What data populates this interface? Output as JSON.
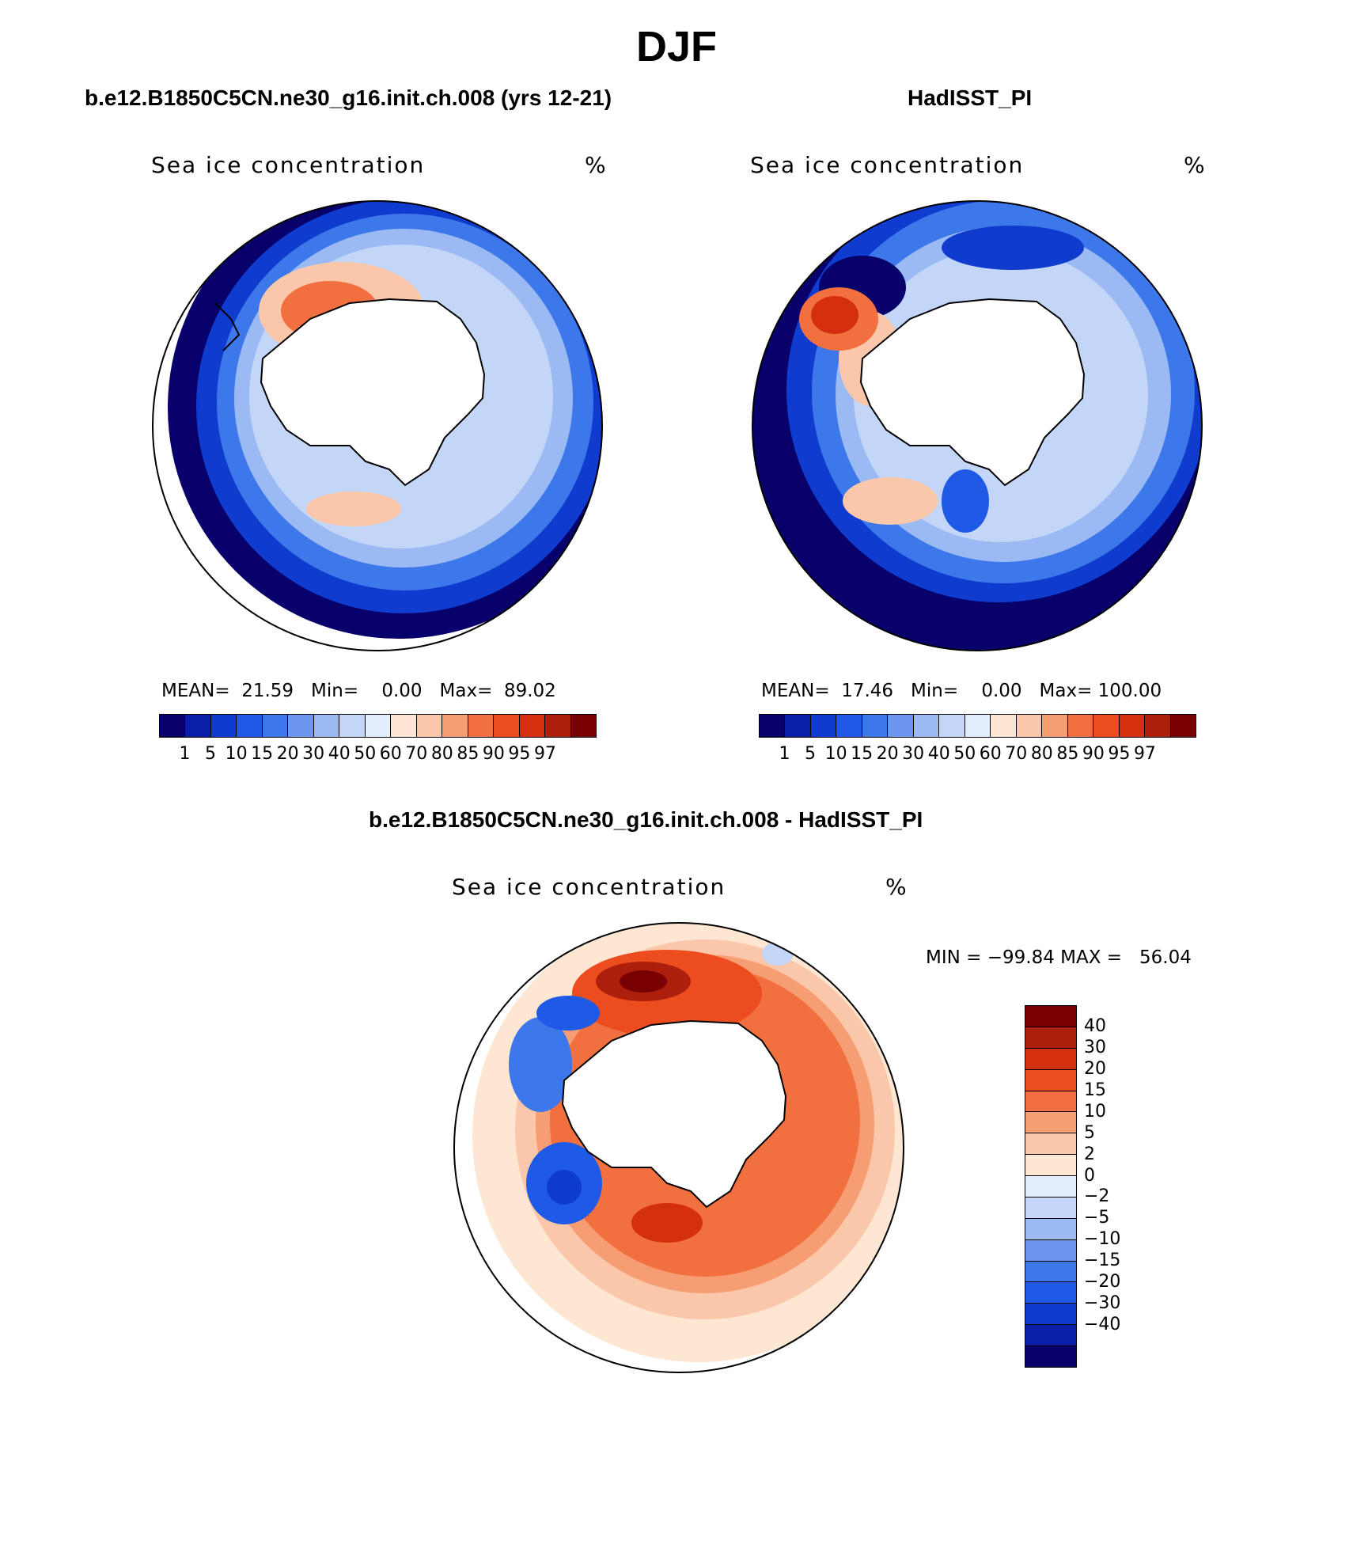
{
  "figure": {
    "title": "DJF"
  },
  "panels": [
    {
      "title": "b.e12.B1850C5CN.ne30_g16.init.ch.008 (yrs 12-21)",
      "variable": "Sea ice concentration",
      "units": "%",
      "stats": {
        "mean_label": "MEAN=",
        "mean": "21.59",
        "min_label": "Min=",
        "min": "0.00",
        "max_label": "Max=",
        "max": "89.02"
      }
    },
    {
      "title": "HadISST_PI",
      "variable": "Sea ice concentration",
      "units": "%",
      "stats": {
        "mean_label": "MEAN=",
        "mean": "17.46",
        "min_label": "Min=",
        "min": "0.00",
        "max_label": "Max=",
        "max": "100.00"
      }
    }
  ],
  "diff_panel": {
    "title": "b.e12.B1850C5CN.ne30_g16.init.ch.008 - HadISST_PI",
    "variable": "Sea ice concentration",
    "units": "%",
    "minmax": "MIN = −99.84 MAX =   56.04"
  },
  "colorbar_abs": {
    "levels": [
      "1",
      "5",
      "10",
      "15",
      "20",
      "30",
      "40",
      "50",
      "60",
      "70",
      "80",
      "85",
      "90",
      "95",
      "97"
    ],
    "colors": [
      "#08006b",
      "#0a1fa8",
      "#0f3ccf",
      "#1f5ae6",
      "#3c78ea",
      "#6d97ef",
      "#9bbaf4",
      "#c3d6f7",
      "#e3efff",
      "#fde6d2",
      "#fbc7aa",
      "#f79d74",
      "#f2703f",
      "#ec4c1e",
      "#d4300f",
      "#ad1f0d",
      "#780000"
    ]
  },
  "colorbar_diff": {
    "levels": [
      "40",
      "30",
      "20",
      "15",
      "10",
      "5",
      "2",
      "0",
      "−2",
      "−5",
      "−10",
      "−15",
      "−20",
      "−30",
      "−40"
    ],
    "colors": [
      "#780000",
      "#ad1f0d",
      "#d4300f",
      "#ec4c1e",
      "#f2703f",
      "#f79d74",
      "#fbc7aa",
      "#fde6d2",
      "#e3efff",
      "#c3d6f7",
      "#9bbaf4",
      "#6d97ef",
      "#3c78ea",
      "#1f5ae6",
      "#0f3ccf",
      "#0a1fa8",
      "#08006b"
    ]
  }
}
